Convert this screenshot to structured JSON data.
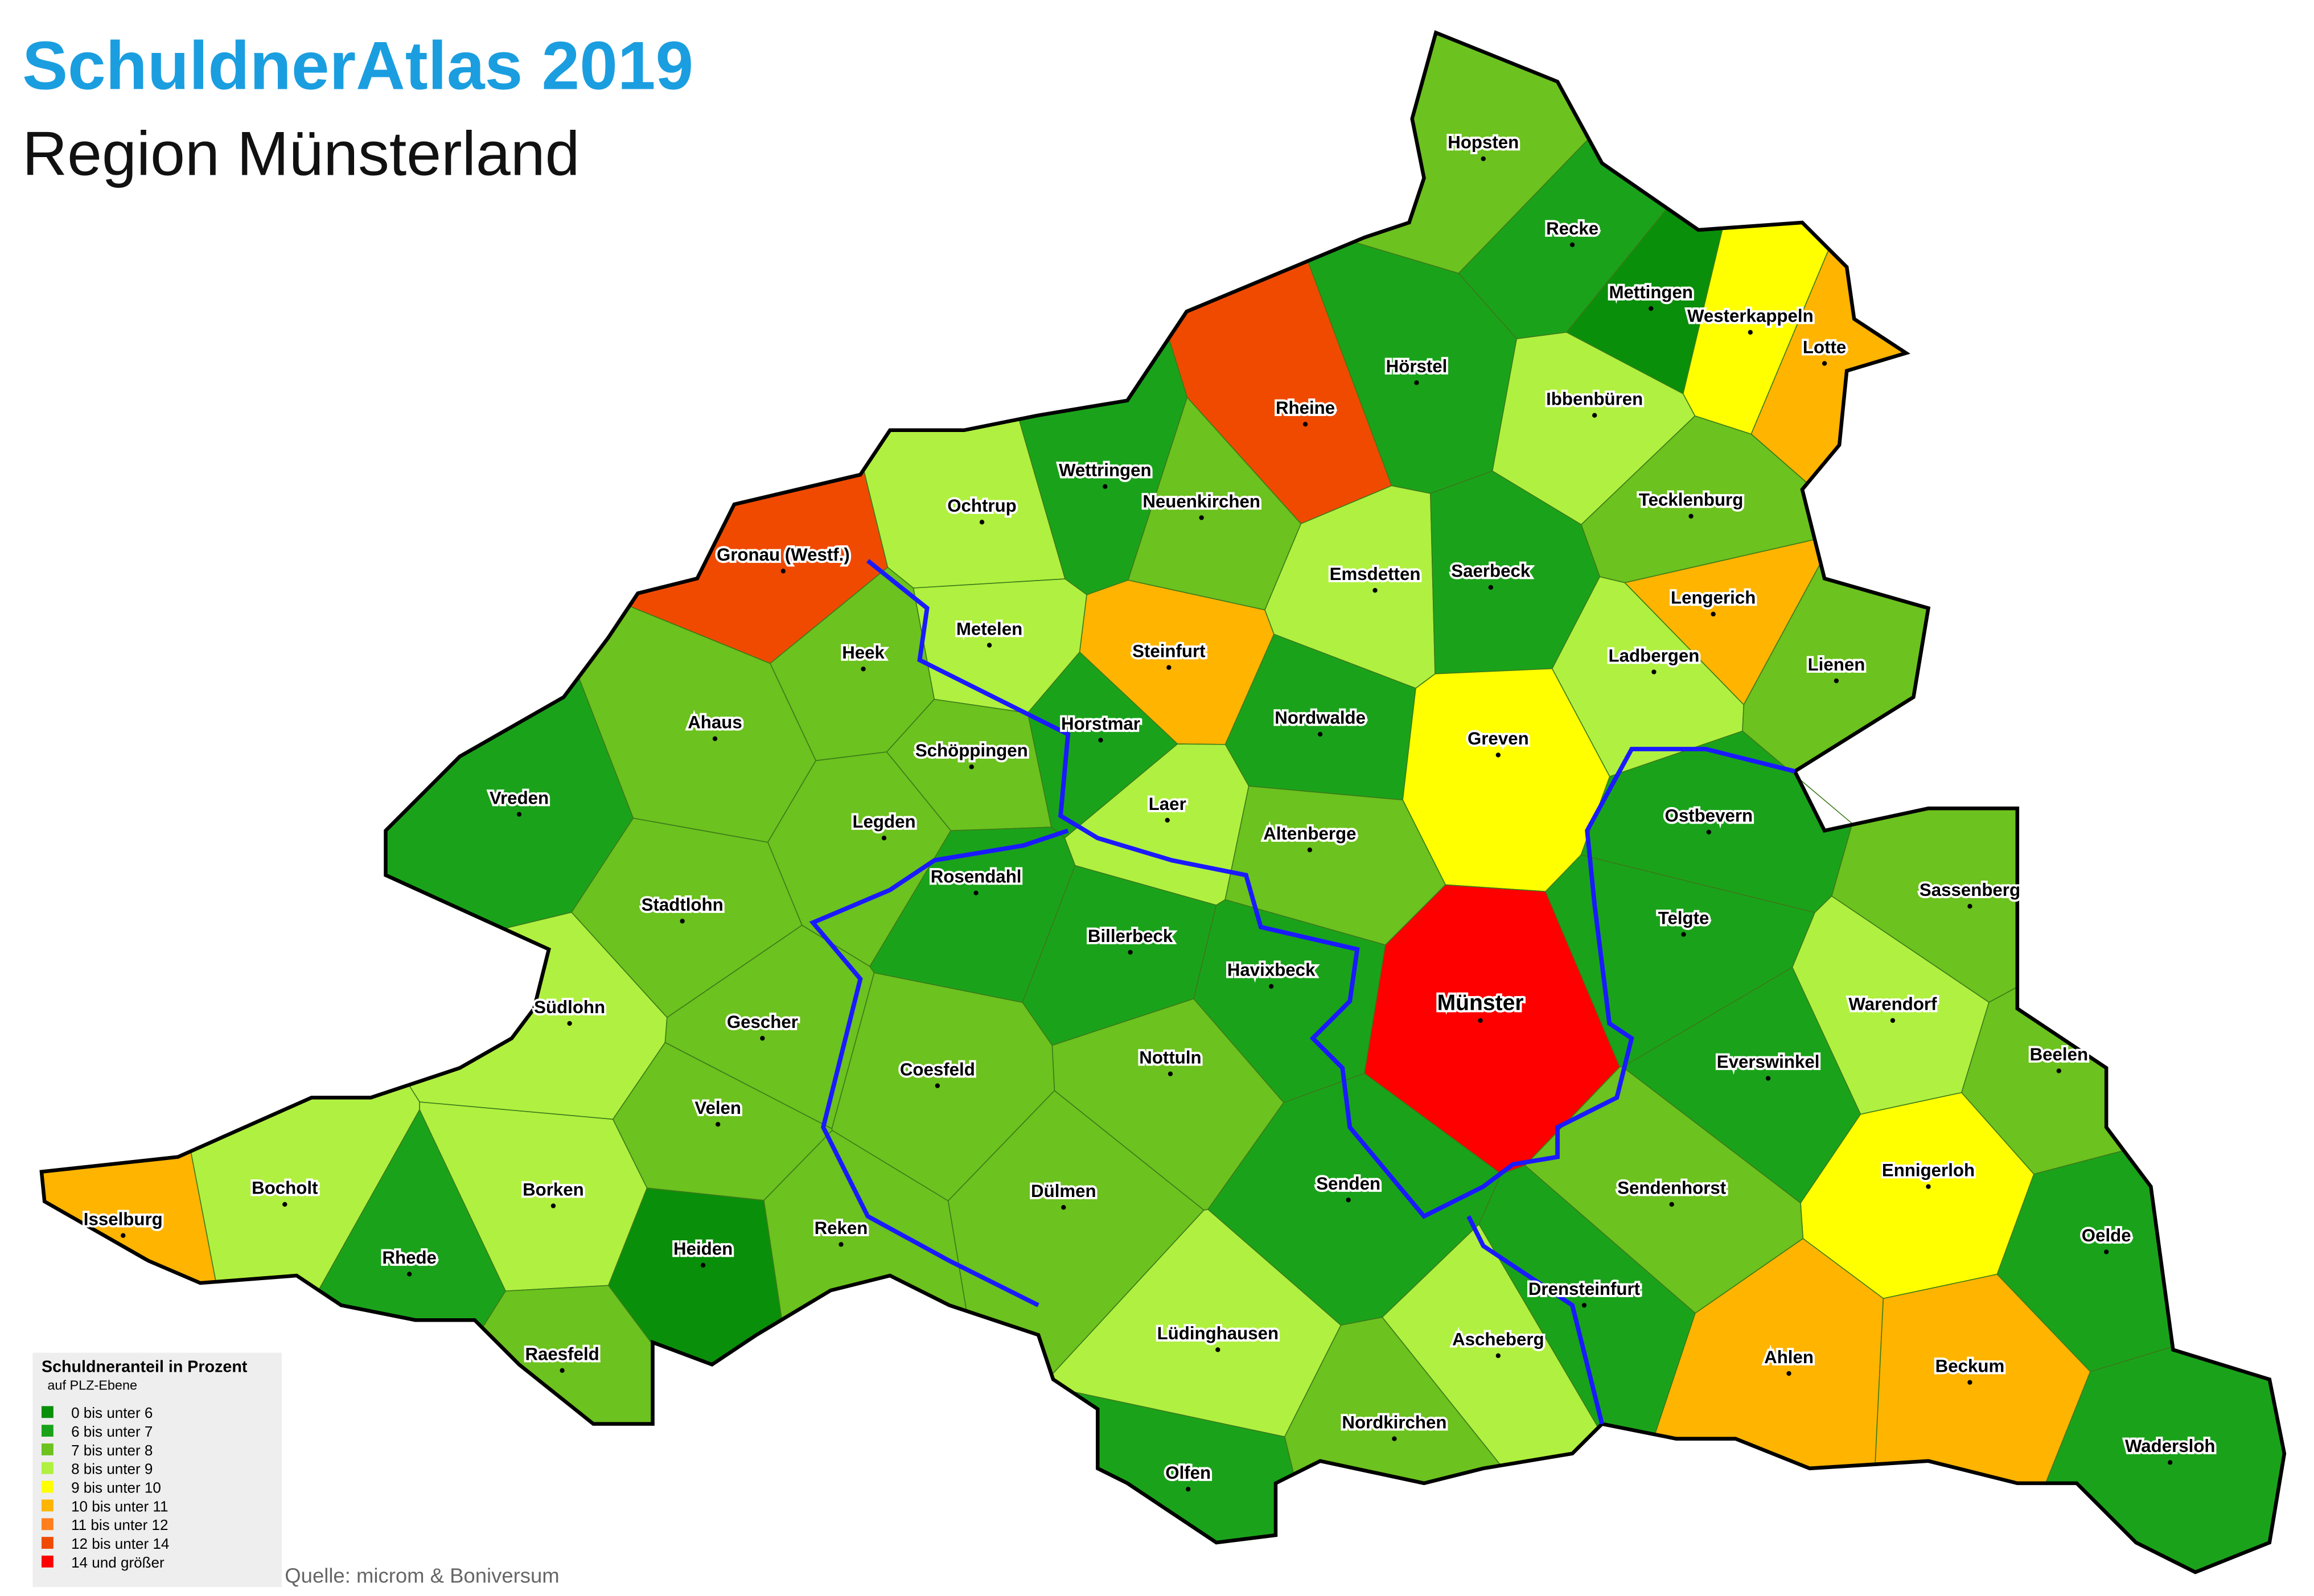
{
  "header": {
    "title": "SchuldnerAtlas 2019",
    "subtitle": "Region Münsterland"
  },
  "legend": {
    "title": "Schuldneranteil in Prozent",
    "subtitle": "auf PLZ-Ebene",
    "items": [
      {
        "label": "0 bis unter  6",
        "color": "#0a8f0a"
      },
      {
        "label": "6 bis unter  7",
        "color": "#1aa31a"
      },
      {
        "label": "7 bis unter  8",
        "color": "#6cc21e"
      },
      {
        "label": "8 bis unter  9",
        "color": "#b0f040"
      },
      {
        "label": "9 bis unter 10",
        "color": "#ffff00"
      },
      {
        "label": "10 bis unter 11",
        "color": "#ffb400"
      },
      {
        "label": "11 bis unter 12",
        "color": "#ff7f1e"
      },
      {
        "label": "12 bis unter 14",
        "color": "#f04a00"
      },
      {
        "label": "14 und größer",
        "color": "#ff0000"
      }
    ]
  },
  "places": [
    {
      "name": "Hopsten",
      "color": "#6cc21e"
    },
    {
      "name": "Recke",
      "color": "#1aa31a"
    },
    {
      "name": "Mettingen",
      "color": "#0a8f0a"
    },
    {
      "name": "Westerkappeln",
      "color": "#ffff00"
    },
    {
      "name": "Lotte",
      "color": "#ffb400"
    },
    {
      "name": "Hörstel",
      "color": "#1aa31a"
    },
    {
      "name": "Rheine",
      "color": "#f04a00"
    },
    {
      "name": "Ibbenbüren",
      "color": "#b0f040"
    },
    {
      "name": "Tecklenburg",
      "color": "#6cc21e"
    },
    {
      "name": "Wettringen",
      "color": "#1aa31a"
    },
    {
      "name": "Neuenkirchen",
      "color": "#6cc21e"
    },
    {
      "name": "Ochtrup",
      "color": "#b0f040"
    },
    {
      "name": "Gronau (Westf.)",
      "color": "#f04a00"
    },
    {
      "name": "Emsdetten",
      "color": "#b0f040"
    },
    {
      "name": "Saerbeck",
      "color": "#1aa31a"
    },
    {
      "name": "Lengerich",
      "color": "#ffb400"
    },
    {
      "name": "Metelen",
      "color": "#b0f040"
    },
    {
      "name": "Steinfurt",
      "color": "#ffb400"
    },
    {
      "name": "Heek",
      "color": "#6cc21e"
    },
    {
      "name": "Ladbergen",
      "color": "#b0f040"
    },
    {
      "name": "Lienen",
      "color": "#6cc21e"
    },
    {
      "name": "Ahaus",
      "color": "#6cc21e"
    },
    {
      "name": "Horstmar",
      "color": "#1aa31a"
    },
    {
      "name": "Nordwalde",
      "color": "#1aa31a"
    },
    {
      "name": "Greven",
      "color": "#ffff00"
    },
    {
      "name": "Schöppingen",
      "color": "#6cc21e"
    },
    {
      "name": "Vreden",
      "color": "#1aa31a"
    },
    {
      "name": "Laer",
      "color": "#b0f040"
    },
    {
      "name": "Ostbevern",
      "color": "#1aa31a"
    },
    {
      "name": "Legden",
      "color": "#6cc21e"
    },
    {
      "name": "Altenberge",
      "color": "#6cc21e"
    },
    {
      "name": "Rosendahl",
      "color": "#1aa31a"
    },
    {
      "name": "Sassenberg",
      "color": "#6cc21e"
    },
    {
      "name": "Stadtlohn",
      "color": "#6cc21e"
    },
    {
      "name": "Telgte",
      "color": "#1aa31a"
    },
    {
      "name": "Billerbeck",
      "color": "#1aa31a"
    },
    {
      "name": "Havixbeck",
      "color": "#1aa31a"
    },
    {
      "name": "Münster",
      "color": "#ff0000"
    },
    {
      "name": "Südlohn",
      "color": "#b0f040"
    },
    {
      "name": "Warendorf",
      "color": "#b0f040"
    },
    {
      "name": "Gescher",
      "color": "#6cc21e"
    },
    {
      "name": "Beelen",
      "color": "#6cc21e"
    },
    {
      "name": "Everswinkel",
      "color": "#1aa31a"
    },
    {
      "name": "Nottuln",
      "color": "#6cc21e"
    },
    {
      "name": "Coesfeld",
      "color": "#6cc21e"
    },
    {
      "name": "Velen",
      "color": "#6cc21e"
    },
    {
      "name": "Ennigerloh",
      "color": "#ffff00"
    },
    {
      "name": "Bocholt",
      "color": "#b0f040"
    },
    {
      "name": "Borken",
      "color": "#b0f040"
    },
    {
      "name": "Sendenhorst",
      "color": "#6cc21e"
    },
    {
      "name": "Dülmen",
      "color": "#6cc21e"
    },
    {
      "name": "Senden",
      "color": "#1aa31a"
    },
    {
      "name": "Isselburg",
      "color": "#ffb400"
    },
    {
      "name": "Oelde",
      "color": "#1aa31a"
    },
    {
      "name": "Heiden",
      "color": "#0a8f0a"
    },
    {
      "name": "Rhede",
      "color": "#1aa31a"
    },
    {
      "name": "Reken",
      "color": "#6cc21e"
    },
    {
      "name": "Drensteinfurt",
      "color": "#1aa31a"
    },
    {
      "name": "Lüdinghausen",
      "color": "#b0f040"
    },
    {
      "name": "Ascheberg",
      "color": "#b0f040"
    },
    {
      "name": "Raesfeld",
      "color": "#6cc21e"
    },
    {
      "name": "Ahlen",
      "color": "#ffb400"
    },
    {
      "name": "Beckum",
      "color": "#ffb400"
    },
    {
      "name": "Nordkirchen",
      "color": "#6cc21e"
    },
    {
      "name": "Wadersloh",
      "color": "#1aa31a"
    },
    {
      "name": "Olfen",
      "color": "#1aa31a"
    }
  ],
  "source": "Quelle: microm & Boniversum"
}
